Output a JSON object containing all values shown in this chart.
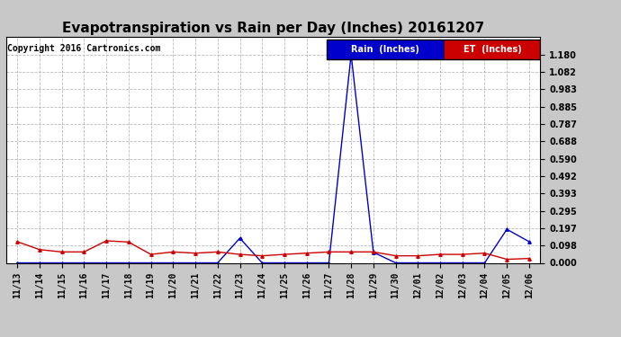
{
  "title": "Evapotranspiration vs Rain per Day (Inches) 20161207",
  "copyright": "Copyright 2016 Cartronics.com",
  "x_labels": [
    "11/13",
    "11/14",
    "11/15",
    "11/16",
    "11/17",
    "11/18",
    "11/19",
    "11/20",
    "11/21",
    "11/22",
    "11/23",
    "11/24",
    "11/25",
    "11/26",
    "11/27",
    "11/28",
    "11/29",
    "11/30",
    "12/01",
    "12/02",
    "12/03",
    "12/04",
    "12/05",
    "12/06"
  ],
  "rain_values": [
    0.0,
    0.0,
    0.0,
    0.0,
    0.0,
    0.0,
    0.0,
    0.0,
    0.0,
    0.0,
    0.14,
    0.0,
    0.0,
    0.0,
    0.0,
    1.18,
    0.06,
    0.0,
    0.0,
    0.0,
    0.0,
    0.0,
    0.19,
    0.12
  ],
  "et_values": [
    0.12,
    0.075,
    0.062,
    0.062,
    0.125,
    0.118,
    0.048,
    0.062,
    0.055,
    0.062,
    0.048,
    0.04,
    0.048,
    0.055,
    0.062,
    0.062,
    0.062,
    0.04,
    0.04,
    0.048,
    0.048,
    0.055,
    0.02,
    0.025
  ],
  "rain_color": "#0000cc",
  "et_color": "#cc0000",
  "ylim": [
    0.0,
    1.279
  ],
  "yticks": [
    0.0,
    0.098,
    0.197,
    0.295,
    0.393,
    0.492,
    0.59,
    0.688,
    0.787,
    0.885,
    0.983,
    1.082,
    1.18
  ],
  "bg_color": "#ffffff",
  "plot_bg_color": "#ffffff",
  "outer_bg_color": "#c8c8c8",
  "grid_color": "#aaaaaa",
  "legend_rain_label": "Rain  (Inches)",
  "legend_et_label": "ET  (Inches)",
  "title_fontsize": 11,
  "copyright_fontsize": 7,
  "tick_fontsize": 7,
  "ytick_fontsize": 7,
  "marker": "^",
  "marker_size": 2.5,
  "linewidth": 1.0
}
